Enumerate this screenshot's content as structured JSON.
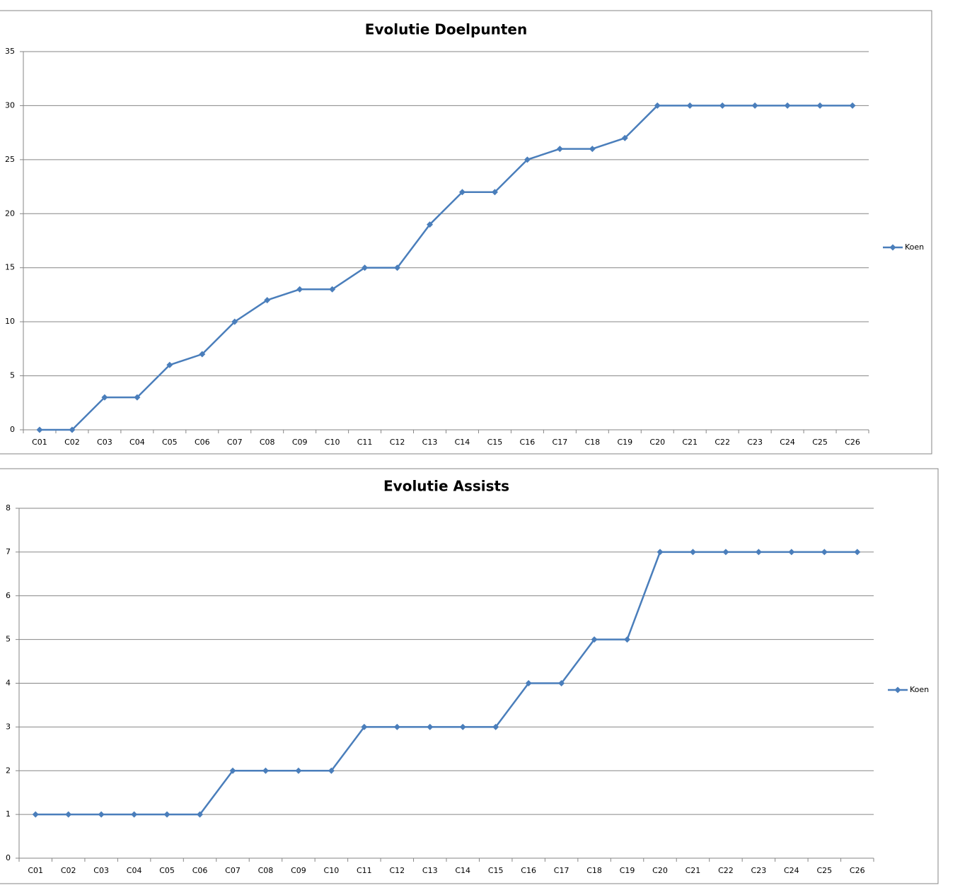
{
  "chart_data": [
    {
      "type": "line",
      "title": "Evolutie Doelpunten",
      "categories": [
        "C01",
        "C02",
        "C03",
        "C04",
        "C05",
        "C06",
        "C07",
        "C08",
        "C09",
        "C10",
        "C11",
        "C12",
        "C13",
        "C14",
        "C15",
        "C16",
        "C17",
        "C18",
        "C19",
        "C20",
        "C21",
        "C22",
        "C23",
        "C24",
        "C25",
        "C26"
      ],
      "series": [
        {
          "name": "Koen",
          "color": "#4a7ebb",
          "values": [
            0,
            0,
            3,
            3,
            6,
            7,
            10,
            12,
            13,
            13,
            15,
            15,
            19,
            22,
            22,
            25,
            26,
            26,
            27,
            30,
            30,
            30,
            30,
            30,
            30,
            30
          ]
        }
      ],
      "ylim": [
        0,
        35
      ],
      "yticks": [
        0,
        5,
        10,
        15,
        20,
        25,
        30,
        35
      ],
      "grid": true,
      "legend": "right"
    },
    {
      "type": "line",
      "title": "Evolutie Assists",
      "categories": [
        "C01",
        "C02",
        "C03",
        "C04",
        "C05",
        "C06",
        "C07",
        "C08",
        "C09",
        "C10",
        "C11",
        "C12",
        "C13",
        "C14",
        "C15",
        "C16",
        "C17",
        "C18",
        "C19",
        "C20",
        "C21",
        "C22",
        "C23",
        "C24",
        "C25",
        "C26"
      ],
      "series": [
        {
          "name": "Koen",
          "color": "#4a7ebb",
          "values": [
            1,
            1,
            1,
            1,
            1,
            1,
            2,
            2,
            2,
            2,
            3,
            3,
            3,
            3,
            3,
            4,
            4,
            5,
            5,
            7,
            7,
            7,
            7,
            7,
            7,
            7
          ]
        }
      ],
      "ylim": [
        0,
        8
      ],
      "yticks": [
        0,
        1,
        2,
        3,
        4,
        5,
        6,
        7,
        8
      ],
      "grid": true,
      "legend": "right"
    }
  ]
}
